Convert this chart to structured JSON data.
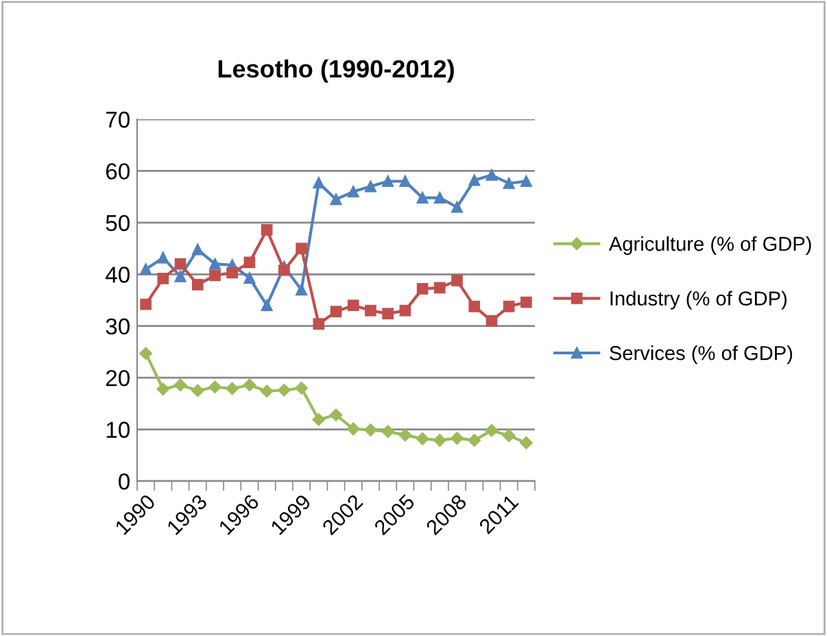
{
  "chart_data": {
    "type": "line",
    "title": "Lesotho (1990-2012)",
    "categories": [
      "1990",
      null,
      null,
      "1993",
      null,
      null,
      "1996",
      null,
      null,
      "1999",
      null,
      null,
      "2002",
      null,
      null,
      "2005",
      null,
      null,
      "2008",
      null,
      null,
      "2011",
      null
    ],
    "series": [
      {
        "name": "Agriculture (% of GDP)",
        "color": "#9bbb59",
        "marker": "diamond",
        "values": [
          24.7,
          17.8,
          18.6,
          17.5,
          18.2,
          17.9,
          18.6,
          17.4,
          17.6,
          18.0,
          11.9,
          12.8,
          10.1,
          9.9,
          9.6,
          8.9,
          8.2,
          7.9,
          8.3,
          7.9,
          9.8,
          8.8,
          7.4
        ]
      },
      {
        "name": "Industry (% of GDP)",
        "color": "#c0504d",
        "marker": "square",
        "values": [
          34.2,
          39.2,
          42.0,
          38.0,
          39.8,
          40.3,
          42.3,
          48.6,
          40.8,
          45.0,
          30.4,
          32.8,
          34.0,
          33.0,
          32.4,
          33.0,
          37.2,
          37.4,
          38.8,
          33.8,
          31.0,
          33.8,
          34.6
        ]
      },
      {
        "name": "Services (% of GDP)",
        "color": "#4f81bd",
        "marker": "triangle",
        "values": [
          41.0,
          43.2,
          39.6,
          44.8,
          42.0,
          41.8,
          39.3,
          34.0,
          41.5,
          37.0,
          57.7,
          54.5,
          56.0,
          57.0,
          58.0,
          58.0,
          54.8,
          54.8,
          53.0,
          58.2,
          59.2,
          57.6,
          58.0
        ]
      }
    ],
    "ylim": [
      0,
      70
    ],
    "yticks": [
      0,
      10,
      20,
      30,
      40,
      50,
      60,
      70
    ],
    "grid": "y",
    "legend": "right"
  }
}
